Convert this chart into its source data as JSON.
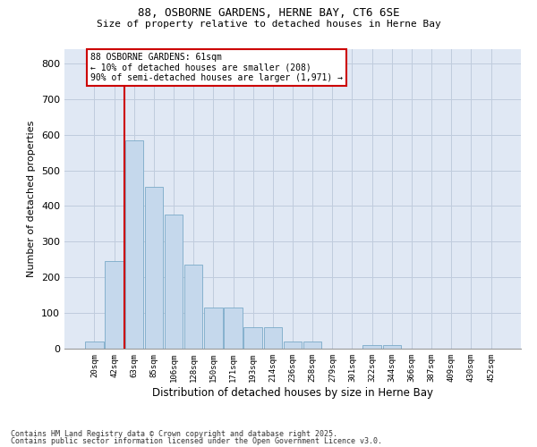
{
  "title1": "88, OSBORNE GARDENS, HERNE BAY, CT6 6SE",
  "title2": "Size of property relative to detached houses in Herne Bay",
  "xlabel": "Distribution of detached houses by size in Herne Bay",
  "ylabel": "Number of detached properties",
  "categories": [
    "20sqm",
    "42sqm",
    "63sqm",
    "85sqm",
    "106sqm",
    "128sqm",
    "150sqm",
    "171sqm",
    "193sqm",
    "214sqm",
    "236sqm",
    "258sqm",
    "279sqm",
    "301sqm",
    "322sqm",
    "344sqm",
    "366sqm",
    "387sqm",
    "409sqm",
    "430sqm",
    "452sqm"
  ],
  "values": [
    20,
    245,
    585,
    455,
    375,
    235,
    115,
    115,
    60,
    60,
    20,
    20,
    0,
    0,
    10,
    10,
    0,
    0,
    0,
    0,
    0
  ],
  "bar_color": "#c5d8ec",
  "bar_edge_color": "#7aaac8",
  "vline_x_index": 2,
  "vline_color": "#cc0000",
  "annotation_text": "88 OSBORNE GARDENS: 61sqm\n← 10% of detached houses are smaller (208)\n90% of semi-detached houses are larger (1,971) →",
  "annotation_box_color": "#cc0000",
  "ylim": [
    0,
    840
  ],
  "yticks": [
    0,
    100,
    200,
    300,
    400,
    500,
    600,
    700,
    800
  ],
  "grid_color": "#c0ccdd",
  "bg_color": "#e0e8f4",
  "footnote1": "Contains HM Land Registry data © Crown copyright and database right 2025.",
  "footnote2": "Contains public sector information licensed under the Open Government Licence v3.0."
}
